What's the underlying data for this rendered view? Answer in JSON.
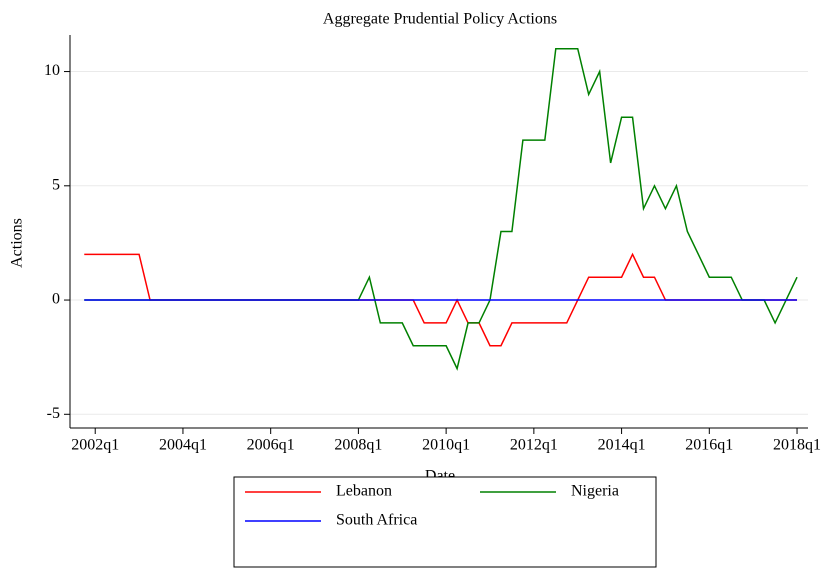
{
  "chart_data": {
    "type": "line",
    "title": "Aggregate Prudential Policy Actions",
    "x_label": "Date",
    "y_label": "Actions",
    "x": [
      "2001q4",
      "2002q1",
      "2002q2",
      "2002q3",
      "2002q4",
      "2003q1",
      "2003q2",
      "2003q3",
      "2003q4",
      "2004q1",
      "2004q2",
      "2004q3",
      "2004q4",
      "2005q1",
      "2005q2",
      "2005q3",
      "2005q4",
      "2006q1",
      "2006q2",
      "2006q3",
      "2006q4",
      "2007q1",
      "2007q2",
      "2007q3",
      "2007q4",
      "2008q1",
      "2008q2",
      "2008q3",
      "2008q4",
      "2009q1",
      "2009q2",
      "2009q3",
      "2009q4",
      "2010q1",
      "2010q2",
      "2010q3",
      "2010q4",
      "2011q1",
      "2011q2",
      "2011q3",
      "2011q4",
      "2012q1",
      "2012q2",
      "2012q3",
      "2012q4",
      "2013q1",
      "2013q2",
      "2013q3",
      "2013q4",
      "2014q1",
      "2014q2",
      "2014q3",
      "2014q4",
      "2015q1",
      "2015q2",
      "2015q3",
      "2015q4",
      "2016q1",
      "2016q2",
      "2016q3",
      "2016q4",
      "2017q1",
      "2017q2",
      "2017q3",
      "2017q4",
      "2018q1"
    ],
    "series": [
      {
        "name": "Lebanon",
        "color": "#ff0000",
        "values": [
          2,
          2,
          2,
          2,
          2,
          2,
          0,
          0,
          0,
          0,
          0,
          0,
          0,
          0,
          0,
          0,
          0,
          0,
          0,
          0,
          0,
          0,
          0,
          0,
          0,
          0,
          0,
          0,
          0,
          0,
          0,
          -1,
          -1,
          -1,
          0,
          -1,
          -1,
          -2,
          -2,
          -1,
          -1,
          -1,
          -1,
          -1,
          -1,
          0,
          1,
          1,
          1,
          1,
          2,
          1,
          1,
          0,
          0,
          0,
          0,
          0,
          0,
          0,
          0,
          0,
          0,
          0,
          0,
          0
        ]
      },
      {
        "name": "Nigeria",
        "color": "#008000",
        "values": [
          0,
          0,
          0,
          0,
          0,
          0,
          0,
          0,
          0,
          0,
          0,
          0,
          0,
          0,
          0,
          0,
          0,
          0,
          0,
          0,
          0,
          0,
          0,
          0,
          0,
          0,
          1,
          -1,
          -1,
          -1,
          -2,
          -2,
          -2,
          -2,
          -3,
          -1,
          -1,
          0,
          3,
          3,
          7,
          7,
          7,
          11,
          11,
          11,
          9,
          10,
          6,
          8,
          8,
          4,
          5,
          4,
          5,
          3,
          2,
          1,
          1,
          1,
          0,
          0,
          0,
          -1,
          0,
          1
        ]
      },
      {
        "name": "South Africa",
        "color": "#0000ff",
        "values": [
          0,
          0,
          0,
          0,
          0,
          0,
          0,
          0,
          0,
          0,
          0,
          0,
          0,
          0,
          0,
          0,
          0,
          0,
          0,
          0,
          0,
          0,
          0,
          0,
          0,
          0,
          0,
          0,
          0,
          0,
          0,
          0,
          0,
          0,
          0,
          0,
          0,
          0,
          0,
          0,
          0,
          0,
          0,
          0,
          0,
          0,
          0,
          0,
          0,
          0,
          0,
          0,
          0,
          0,
          0,
          0,
          0,
          0,
          0,
          0,
          0,
          0,
          0,
          0,
          0,
          0
        ]
      }
    ],
    "xlim": [
      165.7,
      233
    ],
    "xticks": [
      {
        "value": 168,
        "label": "2002q1"
      },
      {
        "value": 176,
        "label": "2004q1"
      },
      {
        "value": 184,
        "label": "2006q1"
      },
      {
        "value": 192,
        "label": "2008q1"
      },
      {
        "value": 200,
        "label": "2010q1"
      },
      {
        "value": 208,
        "label": "2012q1"
      },
      {
        "value": 216,
        "label": "2014q1"
      },
      {
        "value": 224,
        "label": "2016q1"
      },
      {
        "value": 232,
        "label": "2018q1"
      }
    ],
    "ylim": [
      -5.6,
      11.6
    ],
    "yticks": [
      -5,
      0,
      5,
      10
    ],
    "grid": true
  }
}
